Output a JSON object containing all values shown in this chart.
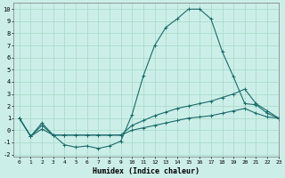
{
  "xlabel": "Humidex (Indice chaleur)",
  "bg_color": "#cceee8",
  "grid_color": "#aaddcc",
  "line_color": "#1a6b6b",
  "xlim": [
    -0.5,
    23
  ],
  "ylim": [
    -2.2,
    10.5
  ],
  "xticks": [
    0,
    1,
    2,
    3,
    4,
    5,
    6,
    7,
    8,
    9,
    10,
    11,
    12,
    13,
    14,
    15,
    16,
    17,
    18,
    19,
    20,
    21,
    22,
    23
  ],
  "yticks": [
    -2,
    -1,
    0,
    1,
    2,
    3,
    4,
    5,
    6,
    7,
    8,
    9,
    10
  ],
  "series": [
    {
      "x": [
        0,
        1,
        2,
        3,
        4,
        5,
        6,
        7,
        8,
        9,
        10,
        11,
        12,
        13,
        14,
        15,
        16,
        17,
        18,
        19,
        20,
        21,
        22,
        23
      ],
      "y": [
        1.0,
        -0.5,
        0.6,
        -0.4,
        -1.2,
        -1.4,
        -1.3,
        -1.5,
        -1.3,
        -0.9,
        1.3,
        4.5,
        7.0,
        8.5,
        9.2,
        10.0,
        10.0,
        9.2,
        6.5,
        4.4,
        2.2,
        2.1,
        1.4,
        1.0
      ]
    },
    {
      "x": [
        0,
        1,
        2,
        3,
        4,
        5,
        6,
        7,
        8,
        9,
        10,
        11,
        12,
        13,
        14,
        15,
        16,
        17,
        18,
        19,
        20,
        21,
        22,
        23
      ],
      "y": [
        1.0,
        -0.5,
        0.4,
        -0.4,
        -0.4,
        -0.4,
        -0.4,
        -0.4,
        -0.4,
        -0.4,
        0.4,
        0.8,
        1.2,
        1.5,
        1.8,
        2.0,
        2.2,
        2.4,
        2.7,
        3.0,
        3.4,
        2.2,
        1.6,
        1.0
      ]
    },
    {
      "x": [
        0,
        1,
        2,
        3,
        4,
        5,
        6,
        7,
        8,
        9,
        10,
        11,
        12,
        13,
        14,
        15,
        16,
        17,
        18,
        19,
        20,
        21,
        22,
        23
      ],
      "y": [
        1.0,
        -0.5,
        0.1,
        -0.4,
        -0.4,
        -0.4,
        -0.4,
        -0.4,
        -0.4,
        -0.4,
        0.0,
        0.2,
        0.4,
        0.6,
        0.8,
        1.0,
        1.1,
        1.2,
        1.4,
        1.6,
        1.8,
        1.4,
        1.1,
        1.0
      ]
    }
  ]
}
